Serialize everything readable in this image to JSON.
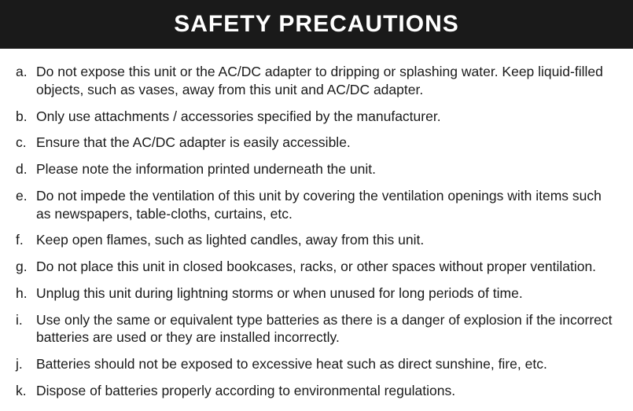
{
  "title": "SAFETY PRECAUTIONS",
  "colors": {
    "header_bg": "#1a1a1a",
    "header_text": "#ffffff",
    "body_text": "#1a1a1a",
    "page_bg": "#ffffff"
  },
  "typography": {
    "title_fontsize": 30,
    "title_weight": 700,
    "item_fontsize": 17.5,
    "font_family": "Arial, Helvetica, sans-serif"
  },
  "items": [
    {
      "marker": "a.",
      "text": "Do not expose this unit or the AC/DC adapter to dripping or splashing water. Keep liquid-filled objects, such as vases, away from this unit and AC/DC adapter."
    },
    {
      "marker": "b.",
      "text": "Only use attachments / accessories specified by the manufacturer."
    },
    {
      "marker": "c.",
      "text": "Ensure that the AC/DC adapter is easily accessible."
    },
    {
      "marker": "d.",
      "text": "Please note the information printed underneath the unit."
    },
    {
      "marker": "e.",
      "text": "Do not impede the ventilation of this unit by covering the ventilation openings with items such as newspapers, table-cloths, curtains, etc."
    },
    {
      "marker": "f.",
      "text": "Keep open flames, such as lighted candles, away from this unit."
    },
    {
      "marker": "g.",
      "text": "Do not place this unit in closed bookcases, racks, or other spaces without proper ventilation."
    },
    {
      "marker": "h.",
      "text": "Unplug this unit during lightning storms or when unused for long periods of time."
    },
    {
      "marker": "i.",
      "text": "Use only the same or equivalent type batteries as there is a danger of explosion if the incorrect batteries are used or they are installed incorrectly."
    },
    {
      "marker": "j.",
      "text": "Batteries should not be exposed to excessive heat such as direct sunshine, fire, etc."
    },
    {
      "marker": "k.",
      "text": "Dispose of batteries properly according to environmental regulations."
    }
  ]
}
